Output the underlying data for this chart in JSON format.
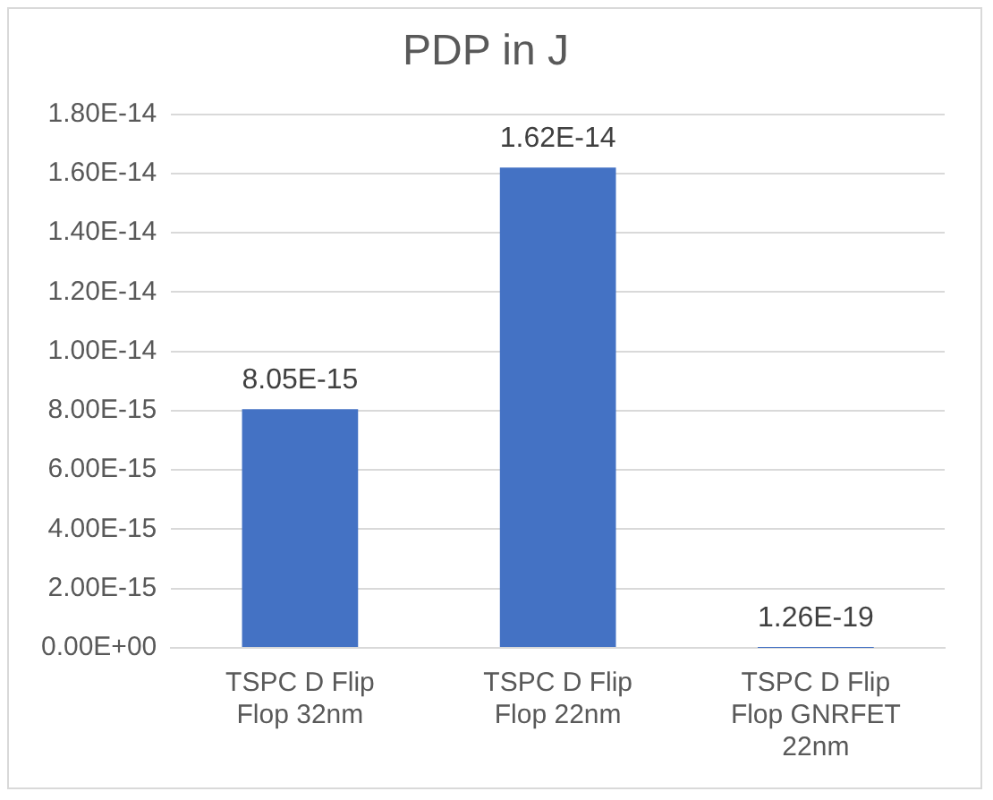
{
  "chart_data": {
    "type": "bar",
    "title": "PDP in J",
    "categories": [
      "TSPC D Flip Flop 32nm",
      "TSPC D Flip Flop 22nm",
      "TSPC D Flip Flop GNRFET 22nm"
    ],
    "values": [
      8.05e-15,
      1.62e-14,
      1.26e-19
    ],
    "value_labels": [
      "8.05E-15",
      "1.62E-14",
      "1.26E-19"
    ],
    "color": "#4472c4",
    "ylim": [
      0,
      1.8e-14
    ],
    "yticks": [
      {
        "value": 0,
        "label": "0.00E+00"
      },
      {
        "value": 2e-15,
        "label": "2.00E-15"
      },
      {
        "value": 4e-15,
        "label": "4.00E-15"
      },
      {
        "value": 6e-15,
        "label": "6.00E-15"
      },
      {
        "value": 8e-15,
        "label": "8.00E-15"
      },
      {
        "value": 1e-14,
        "label": "1.00E-14"
      },
      {
        "value": 1.2e-14,
        "label": "1.20E-14"
      },
      {
        "value": 1.4e-14,
        "label": "1.40E-14"
      },
      {
        "value": 1.6e-14,
        "label": "1.60E-14"
      },
      {
        "value": 1.8e-14,
        "label": "1.80E-14"
      }
    ],
    "grid": "y",
    "legend": false
  }
}
